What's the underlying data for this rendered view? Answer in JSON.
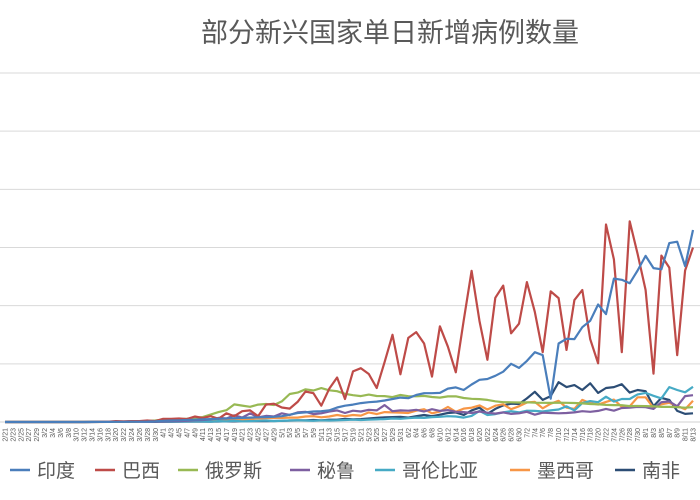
{
  "chart_data": {
    "type": "line",
    "title": "部分新兴国家单日新增病例数量",
    "xlabel": "",
    "ylabel": "",
    "ylim": [
      0,
      120000
    ],
    "y_gridlines": [
      0,
      20000,
      40000,
      60000,
      80000,
      100000,
      120000
    ],
    "grid": true,
    "legend_position": "bottom",
    "categories": [
      "2/21",
      "2/23",
      "2/25",
      "2/27",
      "2/29",
      "3/2",
      "3/4",
      "3/6",
      "3/8",
      "3/10",
      "3/12",
      "3/14",
      "3/16",
      "3/18",
      "3/20",
      "3/22",
      "3/24",
      "3/26",
      "3/28",
      "3/30",
      "4/1",
      "4/3",
      "4/5",
      "4/7",
      "4/9",
      "4/11",
      "4/13",
      "4/15",
      "4/17",
      "4/19",
      "4/21",
      "4/23",
      "4/25",
      "4/27",
      "4/29",
      "5/1",
      "5/3",
      "5/5",
      "5/7",
      "5/9",
      "5/11",
      "5/13",
      "5/15",
      "5/17",
      "5/19",
      "5/21",
      "5/23",
      "5/25",
      "5/27",
      "5/29",
      "5/31",
      "6/2",
      "6/4",
      "6/6",
      "6/8",
      "6/10",
      "6/12",
      "6/14",
      "6/16",
      "6/18",
      "6/20",
      "6/22",
      "6/24",
      "6/26",
      "6/28",
      "6/30",
      "7/2",
      "7/4",
      "7/6",
      "7/8",
      "7/10",
      "7/12",
      "7/14",
      "7/16",
      "7/18",
      "7/20",
      "7/22",
      "7/24",
      "7/26",
      "7/28",
      "7/30",
      "8/1",
      "8/3",
      "8/5",
      "8/7",
      "8/9",
      "8/11",
      "8/13"
    ],
    "series": [
      {
        "name": "印度",
        "color": "#4a7ebb",
        "values": [
          0,
          0,
          0,
          0,
          0,
          0,
          0,
          0,
          0,
          0,
          10,
          20,
          20,
          30,
          60,
          80,
          90,
          100,
          150,
          230,
          400,
          500,
          600,
          700,
          800,
          900,
          1000,
          1100,
          1200,
          1300,
          1400,
          1500,
          1600,
          1700,
          1800,
          2000,
          2500,
          3100,
          3300,
          3600,
          3700,
          4000,
          5000,
          5600,
          6000,
          6500,
          6800,
          7000,
          7400,
          7900,
          8400,
          8200,
          9300,
          9900,
          9900,
          10000,
          11500,
          11900,
          11000,
          12900,
          14500,
          14800,
          15900,
          17300,
          20000,
          18600,
          21000,
          24000,
          23000,
          8000,
          27000,
          28600,
          28500,
          32600,
          34800,
          40400,
          37100,
          49300,
          48900,
          47700,
          52100,
          57100,
          52900,
          52500,
          61500,
          62000,
          53600,
          66000
        ]
      },
      {
        "name": "巴西",
        "color": "#be4b48",
        "values": [
          0,
          0,
          0,
          0,
          0,
          0,
          0,
          0,
          0,
          0,
          0,
          20,
          100,
          100,
          300,
          200,
          300,
          300,
          500,
          300,
          1100,
          1100,
          1200,
          1000,
          1900,
          1400,
          2000,
          1100,
          3000,
          2000,
          3700,
          4000,
          2000,
          6000,
          6300,
          5000,
          4600,
          6900,
          10500,
          9900,
          5600,
          11400,
          15300,
          7900,
          17400,
          18500,
          16500,
          11700,
          20600,
          30000,
          16400,
          28900,
          30900,
          27000,
          15600,
          32900,
          25900,
          17100,
          34900,
          52000,
          34700,
          21400,
          42700,
          46900,
          30500,
          33800,
          48100,
          37900,
          24000,
          44900,
          42600,
          24800,
          41900,
          45400,
          28500,
          20200,
          67900,
          55900,
          24000,
          69000,
          57800,
          45400,
          16600,
          57200,
          53100,
          23000,
          52100,
          60000
        ]
      },
      {
        "name": "俄罗斯",
        "color": "#98b954",
        "values": [
          0,
          0,
          0,
          0,
          0,
          0,
          0,
          0,
          0,
          0,
          10,
          20,
          30,
          40,
          60,
          100,
          150,
          200,
          300,
          500,
          800,
          600,
          1000,
          1150,
          1460,
          1670,
          2560,
          3390,
          4070,
          6060,
          5640,
          5240,
          5970,
          6200,
          5840,
          7100,
          9620,
          10100,
          11230,
          10820,
          11650,
          10900,
          10600,
          9700,
          9200,
          8900,
          9430,
          8950,
          8900,
          8570,
          9270,
          8860,
          8830,
          8980,
          8600,
          8400,
          8800,
          8830,
          8250,
          7970,
          7890,
          7600,
          7110,
          6800,
          6790,
          6690,
          6760,
          6630,
          6610,
          6560,
          6630,
          6610,
          6540,
          6410,
          6200,
          6100,
          5890,
          5810,
          5760,
          5480,
          5500,
          5460,
          5400,
          5200,
          5200,
          5100,
          4900,
          5100
        ]
      },
      {
        "name": "秘鲁",
        "color": "#7d5fa0",
        "values": [
          0,
          0,
          0,
          0,
          0,
          0,
          0,
          0,
          0,
          0,
          0,
          10,
          20,
          40,
          80,
          50,
          60,
          100,
          100,
          150,
          200,
          300,
          300,
          400,
          600,
          700,
          900,
          1400,
          1200,
          2300,
          1500,
          3000,
          1600,
          2100,
          1900,
          3000,
          2400,
          3300,
          3500,
          2700,
          3000,
          3600,
          4000,
          3100,
          3900,
          3600,
          4200,
          4000,
          5800,
          3700,
          4000,
          3900,
          4200,
          3600,
          4400,
          3800,
          4100,
          3500,
          3400,
          3100,
          3600,
          3200,
          2900,
          3300,
          2800,
          3000,
          3500,
          2500,
          3200,
          3100,
          3000,
          3100,
          3300,
          3700,
          3500,
          3800,
          4500,
          3900,
          4800,
          4900,
          5200,
          5100,
          4500,
          6800,
          7100,
          5400,
          8900,
          9200
        ]
      },
      {
        "name": "哥伦比亚",
        "color": "#46aac5",
        "values": [
          0,
          0,
          0,
          0,
          0,
          0,
          0,
          0,
          0,
          0,
          0,
          10,
          20,
          40,
          50,
          80,
          100,
          100,
          150,
          100,
          100,
          100,
          150,
          200,
          250,
          200,
          150,
          300,
          250,
          400,
          250,
          300,
          400,
          500,
          300,
          400,
          500,
          600,
          500,
          400,
          600,
          500,
          600,
          700,
          800,
          700,
          800,
          900,
          1000,
          1200,
          1100,
          1300,
          1500,
          1400,
          1700,
          1800,
          2000,
          1900,
          1500,
          2100,
          3800,
          2400,
          2700,
          3300,
          3700,
          3300,
          3900,
          3800,
          3600,
          4000,
          4300,
          5400,
          4000,
          6500,
          7200,
          6800,
          8700,
          7000,
          7900,
          7900,
          9500,
          10000,
          9000,
          8100,
          12000,
          11000,
          10200,
          12100
        ]
      },
      {
        "name": "墨西哥",
        "color": "#f79646",
        "values": [
          0,
          0,
          0,
          0,
          0,
          0,
          0,
          0,
          0,
          0,
          0,
          0,
          10,
          20,
          30,
          50,
          80,
          100,
          200,
          300,
          200,
          300,
          300,
          400,
          500,
          400,
          400,
          500,
          600,
          800,
          700,
          1000,
          1200,
          1300,
          1400,
          1400,
          1500,
          1500,
          1900,
          2000,
          1600,
          1900,
          2400,
          2000,
          2400,
          2200,
          3300,
          2700,
          3400,
          3300,
          3200,
          3100,
          3900,
          4400,
          3000,
          3600,
          5200,
          3500,
          4600,
          4900,
          5700,
          4300,
          5600,
          6100,
          4400,
          5400,
          6700,
          6900,
          4700,
          6300,
          7300,
          4900,
          4500,
          7600,
          6500,
          6000,
          6900,
          7700,
          5200,
          5400,
          8500,
          8500,
          4800,
          6100,
          6600,
          5500,
          4400,
          7300
        ]
      },
      {
        "name": "南非",
        "color": "#2c4d75",
        "values": [
          0,
          0,
          0,
          0,
          0,
          0,
          0,
          0,
          0,
          0,
          10,
          20,
          30,
          50,
          100,
          150,
          200,
          200,
          100,
          50,
          100,
          80,
          100,
          100,
          90,
          100,
          140,
          180,
          250,
          200,
          300,
          320,
          300,
          300,
          350,
          400,
          500,
          550,
          600,
          700,
          600,
          800,
          800,
          1100,
          900,
          1000,
          1200,
          1400,
          1600,
          1700,
          1800,
          1500,
          2000,
          2400,
          2000,
          2500,
          3100,
          3300,
          2400,
          4000,
          4900,
          2800,
          4500,
          5700,
          6300,
          6200,
          8100,
          10400,
          7600,
          8900,
          13700,
          12000,
          12700,
          11000,
          13300,
          10000,
          11700,
          12000,
          13000,
          10100,
          11000,
          10600,
          5400,
          8300,
          7600,
          3800,
          2800,
          3000
        ]
      }
    ]
  }
}
